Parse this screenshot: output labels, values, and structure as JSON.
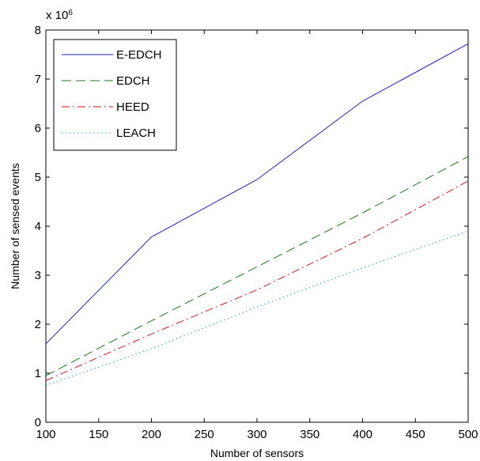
{
  "chart_data": {
    "type": "line",
    "title": "",
    "xlabel": "Number of sensors",
    "ylabel": "Number of sensed events",
    "y_multiplier": {
      "base": "x 10",
      "exponent": "6"
    },
    "xlim": [
      100,
      500
    ],
    "ylim": [
      0,
      8
    ],
    "xticks": [
      100,
      150,
      200,
      250,
      300,
      350,
      400,
      450,
      500
    ],
    "yticks": [
      0,
      1,
      2,
      3,
      4,
      5,
      6,
      7,
      8
    ],
    "grid": false,
    "legend_position": "top-left",
    "x": [
      100,
      200,
      300,
      400,
      500
    ],
    "series": [
      {
        "name": "E-EDCH",
        "color": "#1f1fbf",
        "dash": "solid",
        "values": [
          1.6,
          3.78,
          4.95,
          6.55,
          7.72
        ]
      },
      {
        "name": "EDCH",
        "color": "#1a7a1a",
        "dash": "dashed",
        "values": [
          0.95,
          2.07,
          3.17,
          4.27,
          5.42
        ]
      },
      {
        "name": "HEED",
        "color": "#d11a1a",
        "dash": "dashdot",
        "values": [
          0.85,
          1.8,
          2.7,
          3.75,
          4.92
        ]
      },
      {
        "name": "LEACH",
        "color": "#1aa8b8",
        "dash": "dotted",
        "values": [
          0.75,
          1.5,
          2.35,
          3.15,
          3.9
        ]
      }
    ]
  }
}
